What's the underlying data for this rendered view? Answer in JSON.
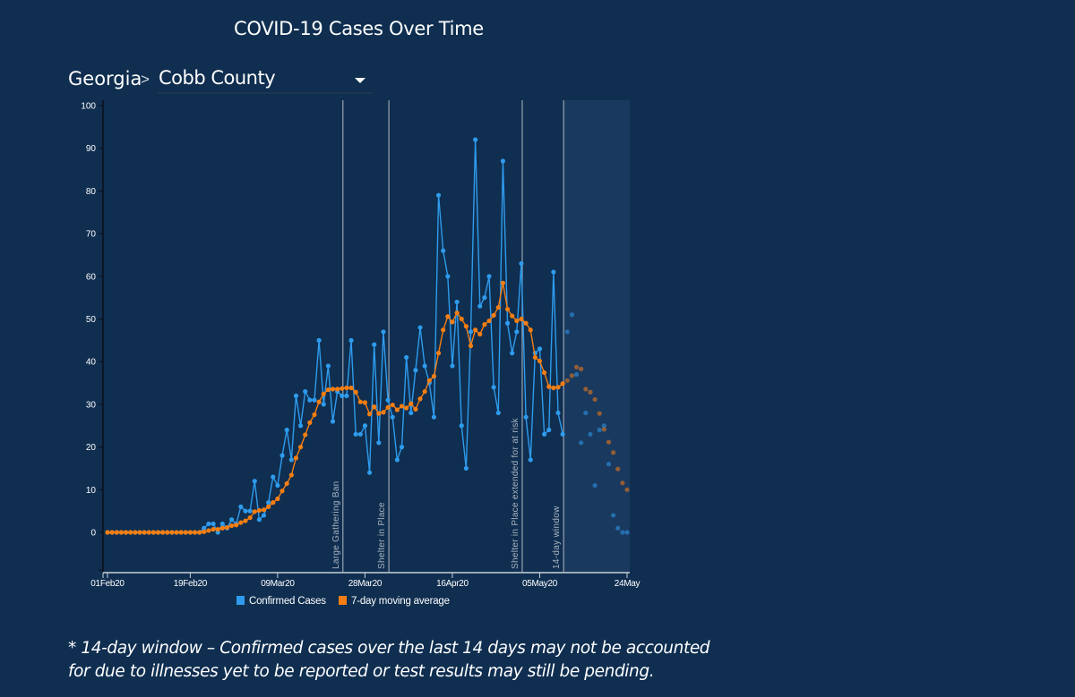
{
  "header": {
    "title": "COVID-19 Cases Over Time",
    "state": "Georgia",
    "separator": ">",
    "county_selected": "Cobb County"
  },
  "footnote": {
    "line1": "* 14-day window – Confirmed cases over the last 14 days may not be accounted",
    "line2": "for due to illnesses yet to be reported or test results may still be pending."
  },
  "colors": {
    "background": "#0f2e50",
    "confirmed": "#2f9bec",
    "average": "#f57e12",
    "window_shade": "#19395f",
    "event_line": "#9aa4b0"
  },
  "chart_data": {
    "type": "line",
    "title": "COVID-19 Cases Over Time",
    "xlabel": "",
    "ylabel": "",
    "x_start": "2020-02-01",
    "x_days": 114,
    "ylim": [
      -9,
      100
    ],
    "y_ticks": [
      0,
      10,
      20,
      30,
      40,
      50,
      60,
      70,
      80,
      90,
      100
    ],
    "x_ticks": [
      {
        "day": 0,
        "label": "01Feb20"
      },
      {
        "day": 18,
        "label": "19Feb20"
      },
      {
        "day": 37,
        "label": "09Mar20"
      },
      {
        "day": 56,
        "label": "28Mar20"
      },
      {
        "day": 75,
        "label": "16Apr20"
      },
      {
        "day": 94,
        "label": "05May20"
      },
      {
        "day": 113,
        "label": "24May"
      }
    ],
    "legend": {
      "position": "bottom",
      "entries": [
        "Confirmed Cases",
        "7-day moving average"
      ]
    },
    "moving_average_window": 7,
    "events": [
      {
        "day": 51,
        "label": "Large Gathering Ban"
      },
      {
        "day": 61,
        "label": "Shelter in Place"
      },
      {
        "day": 90,
        "label": "Shelter in Place extended for at risk"
      },
      {
        "day": 99,
        "label": "14-day window"
      }
    ],
    "window_start_day": 99,
    "series": [
      {
        "name": "Confirmed Cases",
        "values": [
          0,
          0,
          0,
          0,
          0,
          0,
          0,
          0,
          0,
          0,
          0,
          0,
          0,
          0,
          0,
          0,
          0,
          0,
          0,
          0,
          0,
          1,
          2,
          2,
          0,
          2,
          1,
          3,
          2,
          6,
          5,
          5,
          12,
          3,
          4,
          7,
          13,
          11,
          18,
          24,
          17,
          32,
          25,
          33,
          31,
          31,
          45,
          30,
          39,
          26,
          33,
          32,
          32,
          45,
          23,
          23,
          25,
          14,
          44,
          21,
          47,
          31,
          27,
          17,
          20,
          41,
          28,
          38,
          48,
          39,
          35,
          27,
          79,
          66,
          60,
          39,
          54,
          25,
          15,
          47,
          92,
          53,
          55,
          60,
          34,
          28,
          87,
          49,
          42,
          47,
          63,
          27,
          17,
          42,
          43,
          23,
          24,
          61,
          28,
          23,
          47,
          51,
          37,
          21,
          28,
          23,
          11,
          24,
          25,
          16,
          4,
          1,
          0,
          0
        ]
      }
    ]
  }
}
